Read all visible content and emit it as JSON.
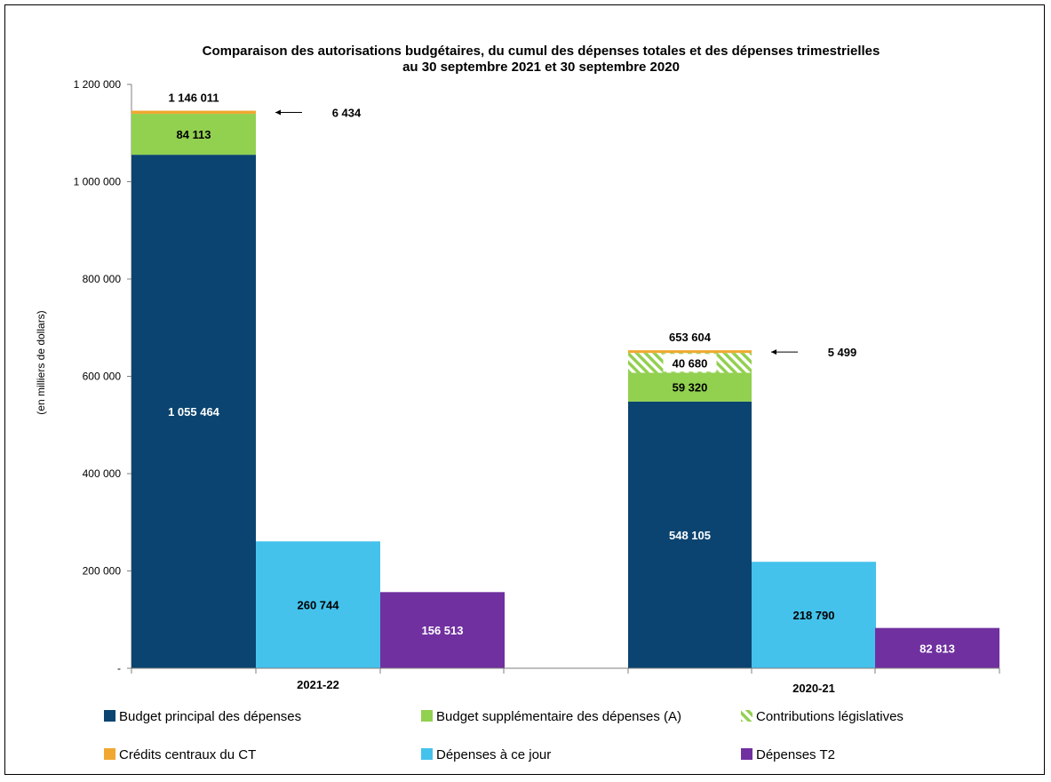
{
  "chart_data": {
    "type": "bar",
    "title_line1": "Comparaison des autorisations budgétaires, du cumul des dépenses totales et des dépenses trimestrielles",
    "title_line2": "au 30 septembre 2021 et 30 septembre 2020",
    "ylabel": "(en milliers de dollars)",
    "ylim": [
      0,
      1200000
    ],
    "yticks": [
      {
        "value": 0,
        "label": "-"
      },
      {
        "value": 200000,
        "label": "200 000"
      },
      {
        "value": 400000,
        "label": "400 000"
      },
      {
        "value": 600000,
        "label": "600 000"
      },
      {
        "value": 800000,
        "label": "800 000"
      },
      {
        "value": 1000000,
        "label": "1 000 000"
      },
      {
        "value": 1200000,
        "label": "1 200 000"
      }
    ],
    "categories": [
      "2021-22",
      "2020-21"
    ],
    "colors": {
      "principal": "#0b4470",
      "supplementaire": "#92d050",
      "legislatives": "#92d050",
      "credits": "#f0a830",
      "a_ce_jour": "#44c2ec",
      "t2": "#7030a0"
    },
    "series": [
      {
        "key": "principal",
        "name": "Budget principal des dépenses",
        "values": [
          1055464,
          548105
        ],
        "labels": [
          "1 055 464",
          "548 105"
        ]
      },
      {
        "key": "supplementaire",
        "name": "Budget supplémentaire des dépenses (A)",
        "values": [
          84113,
          59320
        ],
        "labels": [
          "84 113",
          "59 320"
        ]
      },
      {
        "key": "legislatives",
        "name": "Contributions législatives",
        "values": [
          0,
          40680
        ],
        "labels": [
          "",
          "40 680"
        ]
      },
      {
        "key": "credits",
        "name": "Crédits centraux du CT",
        "values": [
          6434,
          5499
        ],
        "labels": [
          "6 434",
          "5 499"
        ]
      },
      {
        "key": "a_ce_jour",
        "name": "Dépenses à ce jour",
        "values": [
          260744,
          218790
        ],
        "labels": [
          "260 744",
          "218 790"
        ]
      },
      {
        "key": "t2",
        "name": "Dépenses T2",
        "values": [
          156513,
          82813
        ],
        "labels": [
          "156 513",
          "82 813"
        ]
      }
    ],
    "totals": [
      {
        "value": 1146011,
        "label": "1 146 011"
      },
      {
        "value": 653604,
        "label": "653 604"
      }
    ]
  }
}
